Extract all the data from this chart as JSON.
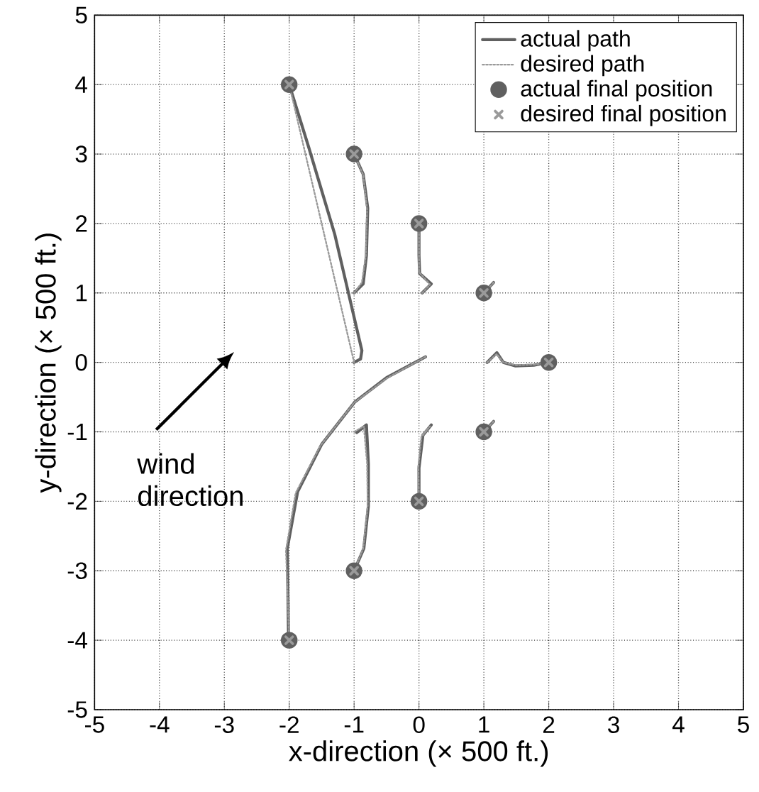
{
  "chart_data": {
    "type": "line",
    "xlabel": "x-direction (× 500 ft.)",
    "ylabel": "y-direction (× 500 ft.)",
    "xlim": [
      -5,
      5
    ],
    "ylim": [
      -5,
      5
    ],
    "xticks": [
      -5,
      -4,
      -3,
      -2,
      -1,
      0,
      1,
      2,
      3,
      4,
      5
    ],
    "yticks": [
      -5,
      -4,
      -3,
      -2,
      -1,
      0,
      1,
      2,
      3,
      4,
      5
    ],
    "grid": true,
    "legend": "top right",
    "annotations": [
      "wind direction"
    ],
    "series": [
      {
        "name": "actual path",
        "line_style": "solid",
        "marker": "none",
        "color": "#606060",
        "x": [
          -1,
          -0.9,
          -0.88,
          -1.3,
          -1.7,
          -2
        ],
        "values": [
          0,
          0.05,
          0.17,
          1.85,
          3.1,
          4
        ]
      },
      {
        "line_style": "solid",
        "marker": "none",
        "color": "#606060",
        "x": [
          -1,
          -0.86,
          -0.81,
          -0.79,
          -0.86,
          -1
        ],
        "values": [
          1,
          1.13,
          1.54,
          2.22,
          2.71,
          3
        ]
      },
      {
        "line_style": "solid",
        "marker": "none",
        "color": "#606060",
        "x": [
          0.05,
          0.19,
          0.01,
          0,
          0
        ],
        "values": [
          1,
          1.13,
          1.28,
          1.54,
          2
        ]
      },
      {
        "line_style": "solid",
        "marker": "none",
        "color": "#606060",
        "x": [
          1.15,
          1
        ],
        "values": [
          1.15,
          1
        ]
      },
      {
        "line_style": "solid",
        "marker": "none",
        "color": "#606060",
        "x": [
          1.05,
          1.2,
          1.3,
          1.48,
          1.77,
          2
        ],
        "values": [
          0,
          0.14,
          0,
          -0.05,
          -0.04,
          0
        ]
      },
      {
        "line_style": "solid",
        "marker": "none",
        "color": "#606060",
        "x": [
          1.15,
          1
        ],
        "values": [
          -0.85,
          -1
        ]
      },
      {
        "line_style": "solid",
        "marker": "none",
        "color": "#606060",
        "x": [
          0.1,
          -0.5,
          -0.99,
          -1.5,
          -1.87,
          -2.03,
          -2.01
        ],
        "values": [
          0.08,
          -0.22,
          -0.57,
          -1.18,
          -1.86,
          -2.68,
          -4
        ]
      },
      {
        "line_style": "solid",
        "marker": "none",
        "color": "#606060",
        "x": [
          -0.96,
          -0.81,
          -0.78,
          -0.78,
          -0.85,
          -1
        ],
        "values": [
          -1.01,
          -0.9,
          -1.46,
          -2.07,
          -2.68,
          -3
        ]
      },
      {
        "line_style": "solid",
        "marker": "none",
        "color": "#606060",
        "x": [
          0.06,
          0.19,
          0.06,
          0,
          0
        ],
        "values": [
          -1.05,
          -0.9,
          -1.05,
          -1.52,
          -2
        ]
      },
      {
        "name": "desired path",
        "line_style": "dotted",
        "marker": "none",
        "color": "#9a9a9a",
        "x": [
          -1,
          -2
        ],
        "values": [
          0,
          4
        ]
      },
      {
        "line_style": "dotted",
        "marker": "none",
        "color": "#9a9a9a",
        "x": [
          -1,
          -0.88,
          -0.82,
          -0.8,
          -0.86,
          -1
        ],
        "values": [
          1,
          1.15,
          1.54,
          2.2,
          2.7,
          3
        ]
      },
      {
        "line_style": "dotted",
        "marker": "none",
        "color": "#9a9a9a",
        "x": [
          0.05,
          0.17,
          0,
          0,
          0
        ],
        "values": [
          1,
          1.12,
          1.3,
          1.55,
          2
        ]
      },
      {
        "line_style": "dotted",
        "marker": "none",
        "color": "#9a9a9a",
        "x": [
          1.15,
          1
        ],
        "values": [
          1.15,
          1
        ]
      },
      {
        "line_style": "dotted",
        "marker": "none",
        "color": "#9a9a9a",
        "x": [
          1.05,
          1.2,
          1.3,
          1.5,
          1.8,
          2
        ],
        "values": [
          0,
          0.12,
          0,
          -0.04,
          -0.03,
          0
        ]
      },
      {
        "line_style": "dotted",
        "marker": "none",
        "color": "#9a9a9a",
        "x": [
          1.15,
          1
        ],
        "values": [
          -0.85,
          -1
        ]
      },
      {
        "line_style": "dotted",
        "marker": "none",
        "color": "#9a9a9a",
        "x": [
          0.1,
          -0.5,
          -1,
          -1.52,
          -1.9,
          -2.05,
          -2
        ],
        "values": [
          0.08,
          -0.23,
          -0.58,
          -1.2,
          -1.88,
          -2.7,
          -4
        ]
      },
      {
        "line_style": "dotted",
        "marker": "none",
        "color": "#9a9a9a",
        "x": [
          -1,
          -0.85,
          -0.8,
          -0.79,
          -0.86,
          -1
        ],
        "values": [
          -1,
          -0.92,
          -1.45,
          -2.05,
          -2.68,
          -3
        ]
      },
      {
        "line_style": "dotted",
        "marker": "none",
        "color": "#9a9a9a",
        "x": [
          0.06,
          0.17,
          0.04,
          -0.01,
          0
        ],
        "values": [
          -1.05,
          -0.92,
          -1.05,
          -1.5,
          -2
        ]
      },
      {
        "name": "actual final position",
        "type": "scatter",
        "marker": "circle",
        "color": "#606060",
        "x": [
          -2,
          -1,
          0,
          1,
          2,
          1,
          -2,
          -1,
          0
        ],
        "values": [
          4,
          3,
          2,
          1,
          0,
          -1,
          -4,
          -3,
          -2
        ]
      },
      {
        "name": "desired final position",
        "type": "scatter",
        "marker": "cross",
        "color": "#9a9a9a",
        "x": [
          -2,
          -1,
          0,
          1,
          2,
          1,
          -2,
          -1,
          0
        ],
        "values": [
          4,
          3,
          2,
          1,
          0,
          -1,
          -4,
          -3,
          -2
        ]
      }
    ]
  }
}
